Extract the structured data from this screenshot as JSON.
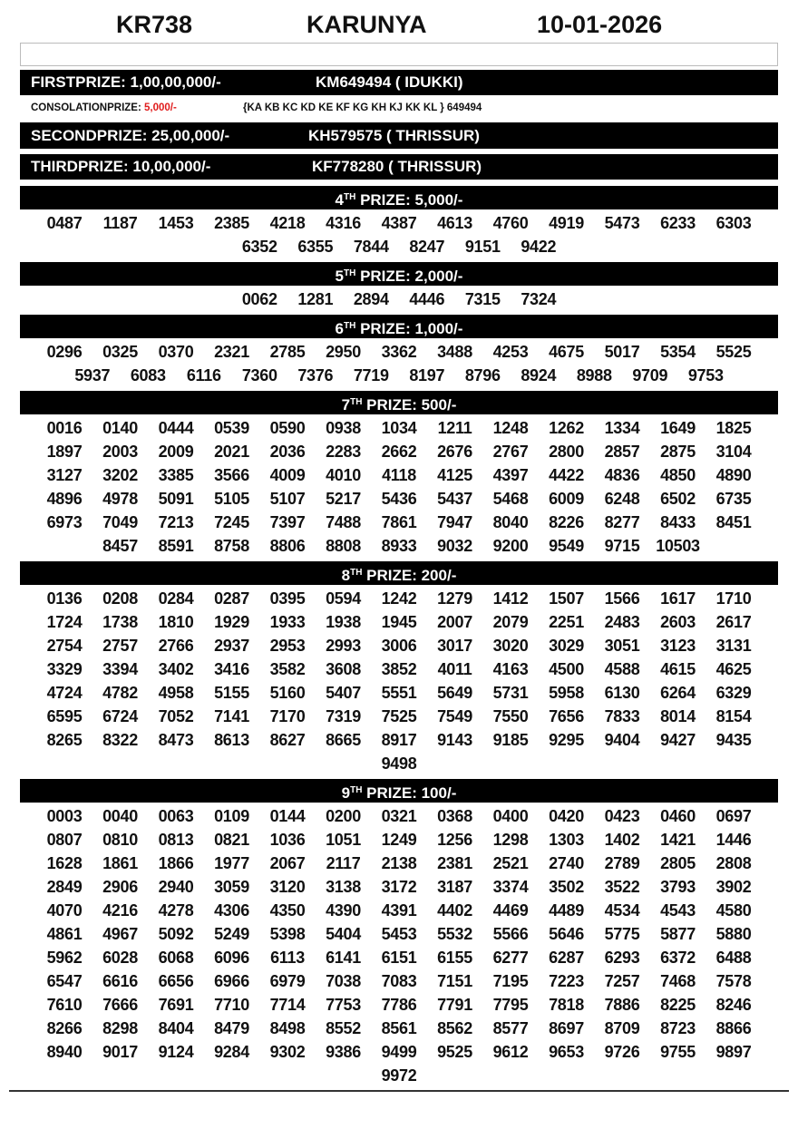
{
  "header": {
    "draw_code": "KR738",
    "lottery_name": "KARUNYA",
    "date": "10-01-2026"
  },
  "first_prize": {
    "label": "FIRSTPRIZE: 1,00,00,000/-",
    "winner": "KM649494 ( IDUKKI)"
  },
  "consolation": {
    "label": "CONSOLATIONPRIZE:",
    "amount": "5,000/-",
    "series": "{KA KB KC KD KE KF KG KH KJ KK KL } 649494",
    "amount_color": "#e01b1b"
  },
  "second_prize": {
    "label": "SECONDPRIZE: 25,00,000/-",
    "winner": "KH579575 ( THRISSUR)"
  },
  "third_prize": {
    "label": "THIRDPRIZE: 10,00,000/-",
    "winner": "KF778280 ( THRISSUR)"
  },
  "prizes": [
    {
      "ordinal": "4",
      "suffix": "TH",
      "title": " PRIZE: 5,000/-",
      "numbers": [
        "0487",
        "1187",
        "1453",
        "2385",
        "4218",
        "4316",
        "4387",
        "4613",
        "4760",
        "4919",
        "5473",
        "6233",
        "6303",
        "6352",
        "6355",
        "7844",
        "8247",
        "9151",
        "9422"
      ]
    },
    {
      "ordinal": "5",
      "suffix": "TH",
      "title": " PRIZE: 2,000/-",
      "numbers": [
        "0062",
        "1281",
        "2894",
        "4446",
        "7315",
        "7324"
      ]
    },
    {
      "ordinal": "6",
      "suffix": "TH",
      "title": " PRIZE: 1,000/-",
      "numbers": [
        "0296",
        "0325",
        "0370",
        "2321",
        "2785",
        "2950",
        "3362",
        "3488",
        "4253",
        "4675",
        "5017",
        "5354",
        "5525",
        "5937",
        "6083",
        "6116",
        "7360",
        "7376",
        "7719",
        "8197",
        "8796",
        "8924",
        "8988",
        "9709",
        "9753"
      ]
    },
    {
      "ordinal": "7",
      "suffix": "TH",
      "title": " PRIZE: 500/-",
      "numbers": [
        "0016",
        "0140",
        "0444",
        "0539",
        "0590",
        "0938",
        "1034",
        "1211",
        "1248",
        "1262",
        "1334",
        "1649",
        "1825",
        "1897",
        "2003",
        "2009",
        "2021",
        "2036",
        "2283",
        "2662",
        "2676",
        "2767",
        "2800",
        "2857",
        "2875",
        "3104",
        "3127",
        "3202",
        "3385",
        "3566",
        "4009",
        "4010",
        "4118",
        "4125",
        "4397",
        "4422",
        "4836",
        "4850",
        "4890",
        "4896",
        "4978",
        "5091",
        "5105",
        "5107",
        "5217",
        "5436",
        "5437",
        "5468",
        "6009",
        "6248",
        "6502",
        "6735",
        "6973",
        "7049",
        "7213",
        "7245",
        "7397",
        "7488",
        "7861",
        "7947",
        "8040",
        "8226",
        "8277",
        "8433",
        "8451",
        "8457",
        "8591",
        "8758",
        "8806",
        "8808",
        "8933",
        "9032",
        "9200",
        "9549",
        "9715",
        "10503"
      ]
    },
    {
      "ordinal": "8",
      "suffix": "TH",
      "title": " PRIZE: 200/-",
      "numbers": [
        "0136",
        "0208",
        "0284",
        "0287",
        "0395",
        "0594",
        "1242",
        "1279",
        "1412",
        "1507",
        "1566",
        "1617",
        "1710",
        "1724",
        "1738",
        "1810",
        "1929",
        "1933",
        "1938",
        "1945",
        "2007",
        "2079",
        "2251",
        "2483",
        "2603",
        "2617",
        "2754",
        "2757",
        "2766",
        "2937",
        "2953",
        "2993",
        "3006",
        "3017",
        "3020",
        "3029",
        "3051",
        "3123",
        "3131",
        "3329",
        "3394",
        "3402",
        "3416",
        "3582",
        "3608",
        "3852",
        "4011",
        "4163",
        "4500",
        "4588",
        "4615",
        "4625",
        "4724",
        "4782",
        "4958",
        "5155",
        "5160",
        "5407",
        "5551",
        "5649",
        "5731",
        "5958",
        "6130",
        "6264",
        "6329",
        "6595",
        "6724",
        "7052",
        "7141",
        "7170",
        "7319",
        "7525",
        "7549",
        "7550",
        "7656",
        "7833",
        "8014",
        "8154",
        "8265",
        "8322",
        "8473",
        "8613",
        "8627",
        "8665",
        "8917",
        "9143",
        "9185",
        "9295",
        "9404",
        "9427",
        "9435",
        "9498"
      ]
    },
    {
      "ordinal": "9",
      "suffix": "TH",
      "title": " PRIZE: 100/-",
      "numbers": [
        "0003",
        "0040",
        "0063",
        "0109",
        "0144",
        "0200",
        "0321",
        "0368",
        "0400",
        "0420",
        "0423",
        "0460",
        "0697",
        "0807",
        "0810",
        "0813",
        "0821",
        "1036",
        "1051",
        "1249",
        "1256",
        "1298",
        "1303",
        "1402",
        "1421",
        "1446",
        "1628",
        "1861",
        "1866",
        "1977",
        "2067",
        "2117",
        "2138",
        "2381",
        "2521",
        "2740",
        "2789",
        "2805",
        "2808",
        "2849",
        "2906",
        "2940",
        "3059",
        "3120",
        "3138",
        "3172",
        "3187",
        "3374",
        "3502",
        "3522",
        "3793",
        "3902",
        "4070",
        "4216",
        "4278",
        "4306",
        "4350",
        "4390",
        "4391",
        "4402",
        "4469",
        "4489",
        "4534",
        "4543",
        "4580",
        "4861",
        "4967",
        "5092",
        "5249",
        "5398",
        "5404",
        "5453",
        "5532",
        "5566",
        "5646",
        "5775",
        "5877",
        "5880",
        "5962",
        "6028",
        "6068",
        "6096",
        "6113",
        "6141",
        "6151",
        "6155",
        "6277",
        "6287",
        "6293",
        "6372",
        "6488",
        "6547",
        "6616",
        "6656",
        "6966",
        "6979",
        "7038",
        "7083",
        "7151",
        "7195",
        "7223",
        "7257",
        "7468",
        "7578",
        "7610",
        "7666",
        "7691",
        "7710",
        "7714",
        "7753",
        "7786",
        "7791",
        "7795",
        "7818",
        "7886",
        "8225",
        "8246",
        "8266",
        "8298",
        "8404",
        "8479",
        "8498",
        "8552",
        "8561",
        "8562",
        "8577",
        "8697",
        "8709",
        "8723",
        "8866",
        "8940",
        "9017",
        "9124",
        "9284",
        "9302",
        "9386",
        "9499",
        "9525",
        "9612",
        "9653",
        "9726",
        "9755",
        "9897",
        "9972"
      ]
    }
  ]
}
